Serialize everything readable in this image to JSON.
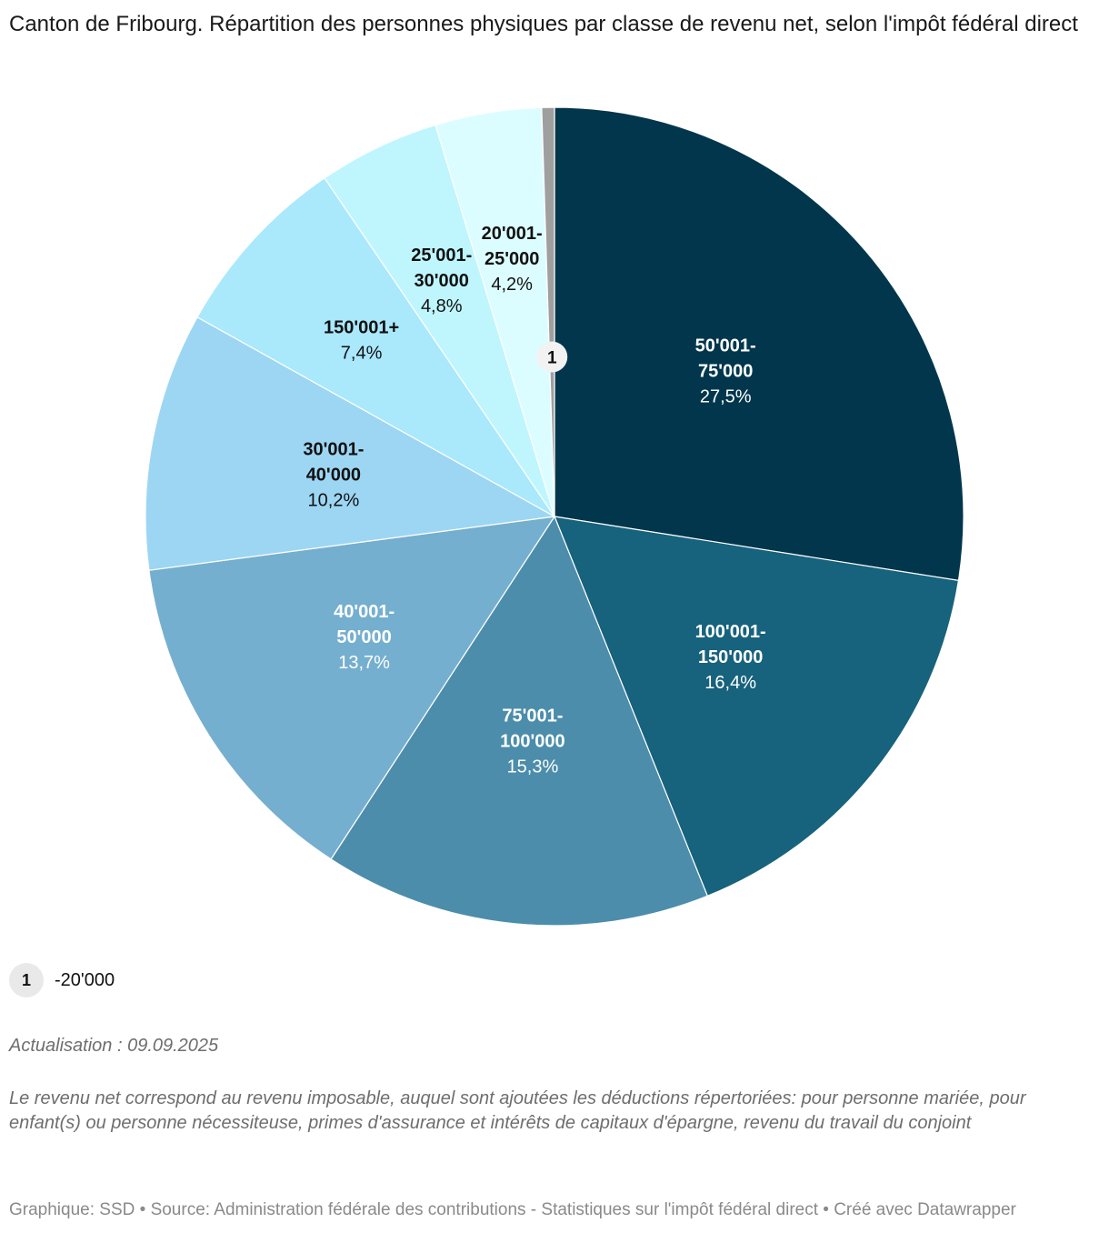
{
  "title": "Canton de Fribourg. Répartition des personnes physiques par classe de revenu net, selon l'impôt fédéral direct",
  "chart_data": {
    "type": "pie",
    "title": "Canton de Fribourg. Répartition des personnes physiques par classe de revenu net, selon l'impôt fédéral direct",
    "slices": [
      {
        "name": "50'001-75'000",
        "label_lines": [
          "50'001-",
          "75'000"
        ],
        "value": 27.5,
        "value_label": "27,5%",
        "color": "#01364c",
        "text_color": "#ffffff"
      },
      {
        "name": "100'001-150'000",
        "label_lines": [
          "100'001-",
          "150'000"
        ],
        "value": 16.4,
        "value_label": "16,4%",
        "color": "#17627c",
        "text_color": "#ffffff"
      },
      {
        "name": "75'001-100'000",
        "label_lines": [
          "75'001-",
          "100'000"
        ],
        "value": 15.3,
        "value_label": "15,3%",
        "color": "#4c8dab",
        "text_color": "#ffffff"
      },
      {
        "name": "40'001-50'000",
        "label_lines": [
          "40'001-",
          "50'000"
        ],
        "value": 13.7,
        "value_label": "13,7%",
        "color": "#75afcf",
        "text_color": "#ffffff"
      },
      {
        "name": "30'001-40'000",
        "label_lines": [
          "30'001-",
          "40'000"
        ],
        "value": 10.2,
        "value_label": "10,2%",
        "color": "#9dd6f3",
        "text_color": "#111111"
      },
      {
        "name": "150'001+",
        "label_lines": [
          "150'001+"
        ],
        "value": 7.4,
        "value_label": "7,4%",
        "color": "#aae8fc",
        "text_color": "#111111"
      },
      {
        "name": "25'001-30'000",
        "label_lines": [
          "25'001-",
          "30'000"
        ],
        "value": 4.8,
        "value_label": "4,8%",
        "color": "#bff6fe",
        "text_color": "#111111"
      },
      {
        "name": "20'001-25'000",
        "label_lines": [
          "20'001-",
          "25'000"
        ],
        "value": 4.2,
        "value_label": "4,2%",
        "color": "#dcfdff",
        "text_color": "#111111"
      },
      {
        "name": "-20'000",
        "label_lines": [],
        "value": 0.5,
        "value_label": "",
        "marker": "1",
        "color": "#9f9f9f",
        "text_color": "#111111"
      }
    ]
  },
  "footnote": {
    "marker": "1",
    "text": "-20'000"
  },
  "update": "Actualisation : 09.09.2025",
  "notes": "Le revenu net correspond au revenu imposable, auquel sont ajoutées les déductions répertoriées: pour personne mariée, pour enfant(s) ou personne nécessiteuse, primes d'assurance et intérêts de capitaux d'épargne, revenu du travail du conjoint",
  "source": "Graphique: SSD • Source: Administration fédérale des contributions - Statistiques sur l'impôt fédéral direct • Créé avec Datawrapper"
}
